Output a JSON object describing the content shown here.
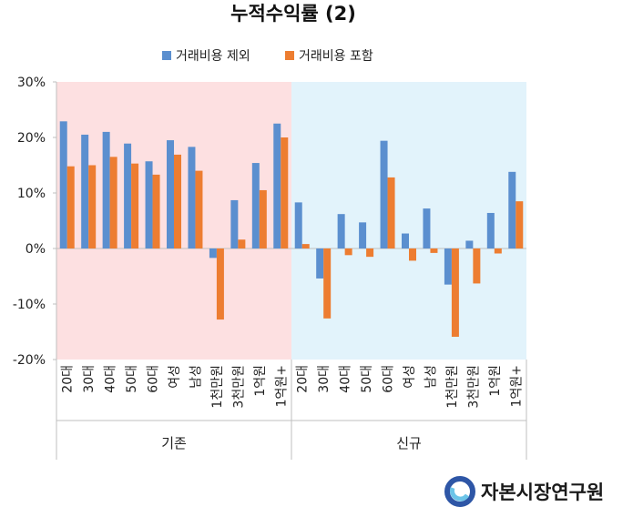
{
  "chart_data": {
    "type": "bar",
    "title": "누적수익률 (2)",
    "ylim": [
      -20,
      30
    ],
    "yticks": [
      -20,
      -10,
      0,
      10,
      20,
      30
    ],
    "ytick_labels": [
      "-20%",
      "-10%",
      "0%",
      "10%",
      "20%",
      "30%"
    ],
    "legend_position": "top-center",
    "groups": [
      {
        "name": "기존",
        "background": "#fde0e1",
        "categories": [
          "20대",
          "30대",
          "40대",
          "50대",
          "60대",
          "여성",
          "남성",
          "1천만원",
          "3천만원",
          "1억원",
          "1억원+"
        ],
        "series_values": [
          [
            22.9,
            20.5,
            21.0,
            18.9,
            15.7,
            19.5,
            18.3,
            -1.7,
            8.7,
            15.4,
            22.5
          ],
          [
            14.8,
            15.0,
            16.5,
            15.3,
            13.3,
            16.9,
            14.0,
            -12.8,
            1.6,
            10.5,
            20.0
          ]
        ]
      },
      {
        "name": "신규",
        "background": "#e2f3fb",
        "categories": [
          "20대",
          "30대",
          "40대",
          "50대",
          "60대",
          "여성",
          "남성",
          "1천만원",
          "3천만원",
          "1억원",
          "1억원+"
        ],
        "series_values": [
          [
            8.3,
            -5.4,
            6.2,
            4.7,
            19.4,
            2.7,
            7.2,
            -6.5,
            1.4,
            6.4,
            13.8
          ],
          [
            0.8,
            -12.6,
            -1.2,
            -1.5,
            12.8,
            -2.2,
            -0.8,
            -15.9,
            -6.3,
            -0.9,
            8.5
          ]
        ]
      }
    ],
    "series": [
      {
        "name": "거래비용 제외",
        "color": "#5b8fcf"
      },
      {
        "name": "거래비용 포함",
        "color": "#ed7d31"
      }
    ]
  },
  "brand": {
    "name": "자본시장연구원",
    "color_outer": "#2e56a6",
    "color_inner": "#6cc4e8"
  }
}
